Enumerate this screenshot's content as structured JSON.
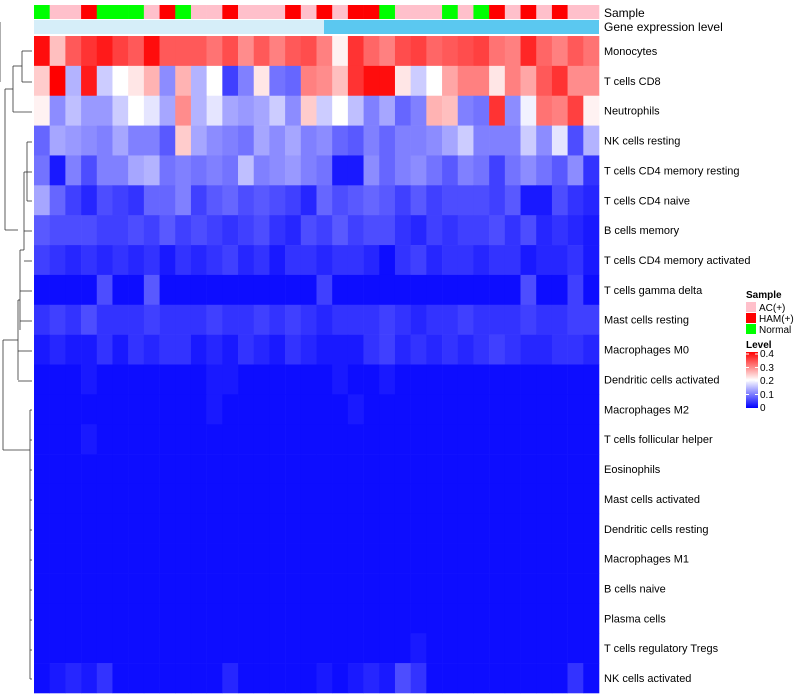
{
  "chart_data": {
    "type": "heatmap",
    "title": "",
    "annotation_labels": {
      "sample": "Sample",
      "gene": "Gene expression level"
    },
    "rows": [
      "Monocytes",
      "T cells CD8",
      "Neutrophils",
      "NK cells resting",
      "T cells CD4 memory resting",
      "T cells CD4 naive",
      "B cells memory",
      "T cells CD4 memory activated",
      "T cells gamma delta",
      "Mast cells resting",
      "Macrophages M0",
      "Dendritic cells activated",
      "Macrophages M2",
      "T cells follicular helper",
      "Eosinophils",
      "Mast cells activated",
      "Dendritic cells resting",
      "Macrophages M1",
      "B cells naive",
      "Plasma cells",
      "T cells regulatory  Tregs",
      "NK cells activated"
    ],
    "sample_groups": [
      "Normal",
      "AC(+)",
      "AC(+)",
      "HAM(+)",
      "Normal",
      "Normal",
      "Normal",
      "AC(+)",
      "HAM(+)",
      "Normal",
      "AC(+)",
      "AC(+)",
      "HAM(+)",
      "AC(+)",
      "AC(+)",
      "AC(+)",
      "HAM(+)",
      "AC(+)",
      "HAM(+)",
      "AC(+)",
      "HAM(+)",
      "HAM(+)",
      "Normal",
      "AC(+)",
      "AC(+)",
      "AC(+)",
      "Normal",
      "AC(+)",
      "Normal",
      "HAM(+)",
      "AC(+)",
      "HAM(+)",
      "AC(+)",
      "HAM(+)",
      "AC(+)",
      "AC(+)"
    ],
    "values": [
      [
        0.39,
        0.25,
        0.33,
        0.36,
        0.38,
        0.35,
        0.33,
        0.39,
        0.33,
        0.33,
        0.33,
        0.31,
        0.34,
        0.29,
        0.33,
        0.3,
        0.33,
        0.34,
        0.3,
        0.21,
        0.36,
        0.32,
        0.3,
        0.34,
        0.35,
        0.32,
        0.33,
        0.34,
        0.35,
        0.31,
        0.3,
        0.37,
        0.32,
        0.3,
        0.33,
        0.31
      ],
      [
        0.24,
        0.4,
        0.14,
        0.38,
        0.16,
        0.2,
        0.22,
        0.26,
        0.11,
        0.26,
        0.14,
        0.2,
        0.05,
        0.1,
        0.22,
        0.09,
        0.08,
        0.3,
        0.29,
        0.25,
        0.36,
        0.39,
        0.39,
        0.22,
        0.16,
        0.2,
        0.27,
        0.3,
        0.3,
        0.22,
        0.3,
        0.27,
        0.33,
        0.36,
        0.29,
        0.29
      ],
      [
        0.21,
        0.11,
        0.15,
        0.12,
        0.12,
        0.16,
        0.2,
        0.18,
        0.13,
        0.29,
        0.14,
        0.18,
        0.13,
        0.12,
        0.13,
        0.16,
        0.11,
        0.24,
        0.16,
        0.2,
        0.15,
        0.1,
        0.13,
        0.08,
        0.1,
        0.26,
        0.25,
        0.1,
        0.09,
        0.36,
        0.11,
        0.19,
        0.31,
        0.3,
        0.35,
        0.21
      ],
      [
        0.08,
        0.13,
        0.12,
        0.11,
        0.1,
        0.13,
        0.1,
        0.1,
        0.07,
        0.24,
        0.13,
        0.11,
        0.1,
        0.09,
        0.13,
        0.11,
        0.13,
        0.1,
        0.11,
        0.08,
        0.07,
        0.1,
        0.08,
        0.1,
        0.1,
        0.11,
        0.13,
        0.16,
        0.1,
        0.1,
        0.1,
        0.16,
        0.11,
        0.18,
        0.06,
        0.14
      ],
      [
        0.09,
        0.02,
        0.1,
        0.06,
        0.1,
        0.1,
        0.13,
        0.14,
        0.09,
        0.1,
        0.09,
        0.1,
        0.09,
        0.15,
        0.1,
        0.11,
        0.12,
        0.1,
        0.09,
        0.02,
        0.02,
        0.11,
        0.08,
        0.1,
        0.11,
        0.09,
        0.07,
        0.1,
        0.09,
        0.05,
        0.09,
        0.11,
        0.09,
        0.07,
        0.11,
        0.04
      ],
      [
        0.13,
        0.08,
        0.05,
        0.03,
        0.06,
        0.05,
        0.04,
        0.08,
        0.08,
        0.1,
        0.05,
        0.07,
        0.08,
        0.06,
        0.07,
        0.06,
        0.05,
        0.03,
        0.08,
        0.06,
        0.07,
        0.08,
        0.07,
        0.05,
        0.07,
        0.05,
        0.06,
        0.06,
        0.06,
        0.05,
        0.07,
        0.02,
        0.02,
        0.06,
        0.04,
        0.03
      ],
      [
        0.07,
        0.06,
        0.06,
        0.06,
        0.05,
        0.05,
        0.06,
        0.05,
        0.07,
        0.05,
        0.06,
        0.05,
        0.04,
        0.05,
        0.06,
        0.04,
        0.03,
        0.06,
        0.05,
        0.07,
        0.05,
        0.06,
        0.06,
        0.04,
        0.03,
        0.05,
        0.04,
        0.05,
        0.05,
        0.06,
        0.04,
        0.06,
        0.03,
        0.04,
        0.03,
        0.02
      ],
      [
        0.05,
        0.04,
        0.03,
        0.04,
        0.03,
        0.04,
        0.03,
        0.04,
        0.02,
        0.04,
        0.03,
        0.04,
        0.05,
        0.03,
        0.04,
        0.02,
        0.04,
        0.04,
        0.03,
        0.04,
        0.04,
        0.03,
        0.01,
        0.04,
        0.05,
        0.03,
        0.04,
        0.04,
        0.03,
        0.04,
        0.04,
        0.02,
        0.03,
        0.03,
        0.04,
        0.02
      ],
      [
        0.01,
        0.01,
        0.01,
        0.01,
        0.06,
        0.01,
        0.01,
        0.07,
        0.01,
        0.01,
        0.01,
        0.01,
        0.01,
        0.01,
        0.01,
        0.01,
        0.01,
        0.01,
        0.05,
        0.01,
        0.01,
        0.01,
        0.01,
        0.01,
        0.01,
        0.01,
        0.01,
        0.01,
        0.01,
        0.01,
        0.01,
        0.06,
        0.01,
        0.01,
        0.05,
        0.01
      ],
      [
        0.04,
        0.05,
        0.04,
        0.06,
        0.04,
        0.04,
        0.04,
        0.05,
        0.04,
        0.04,
        0.04,
        0.05,
        0.04,
        0.04,
        0.05,
        0.04,
        0.05,
        0.04,
        0.03,
        0.04,
        0.04,
        0.04,
        0.05,
        0.04,
        0.03,
        0.04,
        0.04,
        0.05,
        0.04,
        0.04,
        0.04,
        0.05,
        0.04,
        0.04,
        0.05,
        0.05
      ],
      [
        0.02,
        0.03,
        0.02,
        0.02,
        0.04,
        0.02,
        0.04,
        0.03,
        0.04,
        0.04,
        0.02,
        0.03,
        0.02,
        0.04,
        0.03,
        0.02,
        0.04,
        0.03,
        0.02,
        0.02,
        0.02,
        0.04,
        0.05,
        0.03,
        0.04,
        0.03,
        0.04,
        0.03,
        0.04,
        0.05,
        0.04,
        0.03,
        0.03,
        0.04,
        0.04,
        0.03
      ],
      [
        0.01,
        0.01,
        0.01,
        0.02,
        0.01,
        0.01,
        0.01,
        0.01,
        0.01,
        0.01,
        0.01,
        0.02,
        0.02,
        0.01,
        0.01,
        0.01,
        0.01,
        0.01,
        0.01,
        0.02,
        0.01,
        0.01,
        0.02,
        0.01,
        0.01,
        0.01,
        0.01,
        0.01,
        0.01,
        0.01,
        0.01,
        0.01,
        0.01,
        0.01,
        0.01,
        0.01
      ],
      [
        0.01,
        0.01,
        0.01,
        0.01,
        0.01,
        0.01,
        0.01,
        0.01,
        0.01,
        0.01,
        0.01,
        0.02,
        0.01,
        0.01,
        0.01,
        0.01,
        0.01,
        0.01,
        0.01,
        0.01,
        0.02,
        0.01,
        0.01,
        0.01,
        0.01,
        0.01,
        0.01,
        0.01,
        0.01,
        0.01,
        0.01,
        0.01,
        0.01,
        0.01,
        0.01,
        0.01
      ],
      [
        0.01,
        0.01,
        0.01,
        0.02,
        0.01,
        0.01,
        0.01,
        0.01,
        0.01,
        0.01,
        0.01,
        0.01,
        0.01,
        0.01,
        0.01,
        0.01,
        0.01,
        0.01,
        0.01,
        0.01,
        0.01,
        0.01,
        0.01,
        0.01,
        0.01,
        0.01,
        0.01,
        0.01,
        0.01,
        0.01,
        0.01,
        0.01,
        0.01,
        0.01,
        0.01,
        0.01
      ],
      [
        0.01,
        0.01,
        0.01,
        0.01,
        0.01,
        0.01,
        0.01,
        0.01,
        0.01,
        0.01,
        0.01,
        0.01,
        0.01,
        0.01,
        0.01,
        0.01,
        0.01,
        0.01,
        0.01,
        0.01,
        0.01,
        0.01,
        0.01,
        0.01,
        0.01,
        0.01,
        0.01,
        0.01,
        0.01,
        0.01,
        0.01,
        0.01,
        0.01,
        0.01,
        0.01,
        0.01
      ],
      [
        0.01,
        0.01,
        0.01,
        0.01,
        0.01,
        0.01,
        0.01,
        0.01,
        0.01,
        0.01,
        0.01,
        0.01,
        0.01,
        0.01,
        0.01,
        0.01,
        0.01,
        0.01,
        0.01,
        0.01,
        0.01,
        0.01,
        0.01,
        0.01,
        0.01,
        0.01,
        0.01,
        0.01,
        0.01,
        0.01,
        0.01,
        0.01,
        0.01,
        0.01,
        0.01,
        0.01
      ],
      [
        0.01,
        0.01,
        0.01,
        0.01,
        0.01,
        0.01,
        0.01,
        0.01,
        0.01,
        0.01,
        0.01,
        0.01,
        0.01,
        0.01,
        0.01,
        0.01,
        0.01,
        0.01,
        0.01,
        0.01,
        0.01,
        0.01,
        0.01,
        0.01,
        0.01,
        0.01,
        0.01,
        0.01,
        0.01,
        0.01,
        0.01,
        0.01,
        0.01,
        0.01,
        0.01,
        0.01
      ],
      [
        0.01,
        0.01,
        0.01,
        0.01,
        0.01,
        0.01,
        0.01,
        0.01,
        0.01,
        0.01,
        0.01,
        0.01,
        0.01,
        0.01,
        0.01,
        0.01,
        0.01,
        0.01,
        0.01,
        0.01,
        0.01,
        0.01,
        0.01,
        0.01,
        0.01,
        0.01,
        0.01,
        0.01,
        0.01,
        0.01,
        0.01,
        0.01,
        0.01,
        0.01,
        0.01,
        0.01
      ],
      [
        0.01,
        0.01,
        0.01,
        0.01,
        0.01,
        0.01,
        0.01,
        0.01,
        0.01,
        0.01,
        0.01,
        0.01,
        0.01,
        0.01,
        0.01,
        0.01,
        0.01,
        0.01,
        0.01,
        0.01,
        0.01,
        0.01,
        0.01,
        0.01,
        0.01,
        0.01,
        0.01,
        0.01,
        0.01,
        0.01,
        0.01,
        0.01,
        0.01,
        0.01,
        0.01,
        0.01
      ],
      [
        0.01,
        0.01,
        0.01,
        0.01,
        0.01,
        0.01,
        0.01,
        0.01,
        0.01,
        0.01,
        0.01,
        0.01,
        0.01,
        0.01,
        0.01,
        0.01,
        0.01,
        0.01,
        0.01,
        0.01,
        0.01,
        0.01,
        0.01,
        0.01,
        0.01,
        0.01,
        0.01,
        0.01,
        0.01,
        0.01,
        0.01,
        0.01,
        0.01,
        0.01,
        0.01,
        0.01
      ],
      [
        0.01,
        0.01,
        0.01,
        0.01,
        0.01,
        0.01,
        0.01,
        0.01,
        0.01,
        0.01,
        0.01,
        0.01,
        0.01,
        0.01,
        0.01,
        0.01,
        0.01,
        0.01,
        0.01,
        0.01,
        0.01,
        0.01,
        0.01,
        0.01,
        0.02,
        0.01,
        0.01,
        0.01,
        0.01,
        0.01,
        0.01,
        0.01,
        0.01,
        0.01,
        0.01,
        0.01
      ],
      [
        0.01,
        0.02,
        0.03,
        0.02,
        0.04,
        0.01,
        0.01,
        0.01,
        0.01,
        0.01,
        0.01,
        0.01,
        0.03,
        0.01,
        0.01,
        0.01,
        0.01,
        0.01,
        0.02,
        0.01,
        0.02,
        0.03,
        0.02,
        0.06,
        0.04,
        0.01,
        0.01,
        0.01,
        0.01,
        0.01,
        0.01,
        0.01,
        0.01,
        0.01,
        0.04,
        0.01
      ]
    ],
    "legend": {
      "sample_title": "Sample",
      "sample_entries": [
        {
          "label": "AC(+)",
          "color": "#FFC0CB"
        },
        {
          "label": "HAM(+)",
          "color": "#FF0000"
        },
        {
          "label": "Normal",
          "color": "#00FF00"
        }
      ],
      "level_title": "Level",
      "level_ticks": [
        "0.4",
        "0.3",
        "0.2",
        "0.1",
        "0"
      ],
      "level_range": [
        0,
        0.4
      ],
      "placement": "right"
    },
    "colors": {
      "low": "#0000FF",
      "mid": "#FFFFFF",
      "high": "#FF0000",
      "gene_bar": "#5BC8F0",
      "gene_bar_light": "#D6EEF9"
    }
  }
}
